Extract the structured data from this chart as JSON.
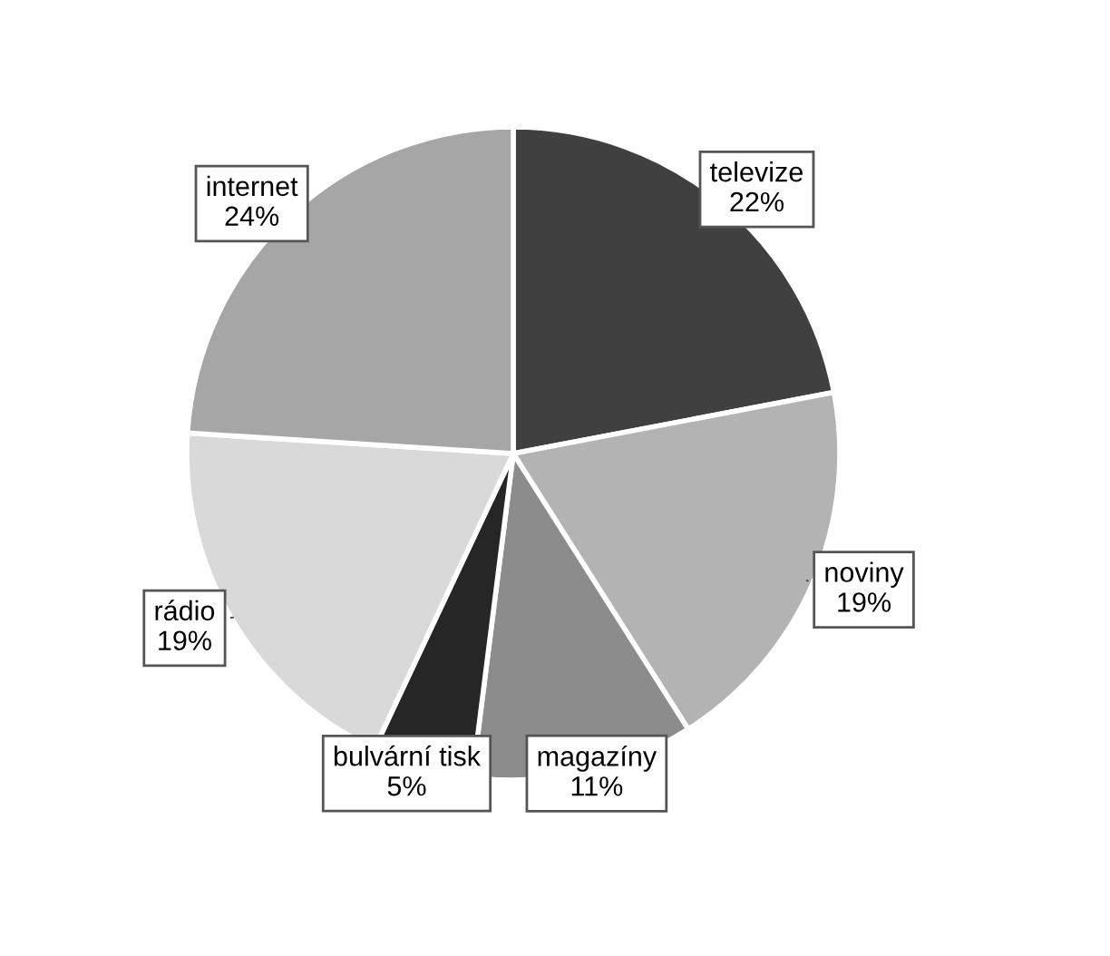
{
  "chart_data": {
    "type": "pie",
    "categories": [
      "televize",
      "noviny",
      "magazíny",
      "bulvární tisk",
      "rádio",
      "internet"
    ],
    "values": [
      22,
      19,
      11,
      5,
      19,
      24
    ],
    "value_labels": [
      "22%",
      "19%",
      "11%",
      "5%",
      "19%",
      "24%"
    ],
    "colors": [
      "#404040",
      "#b3b3b3",
      "#8c8c8c",
      "#262626",
      "#d9d9d9",
      "#a6a6a6"
    ],
    "legend": false
  }
}
